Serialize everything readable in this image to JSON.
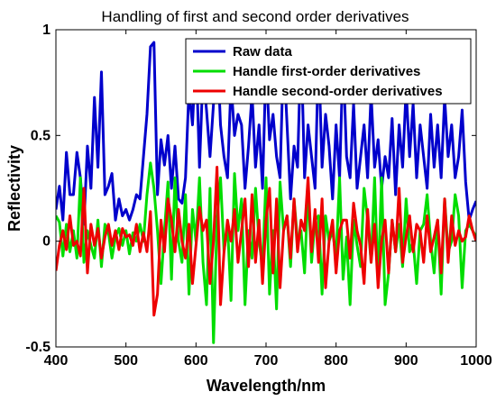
{
  "chart_data": {
    "type": "line",
    "title": "Handling of first and second order derivatives",
    "xlabel": "Wavelength/nm",
    "ylabel": "Reflectivity",
    "xlim": [
      400,
      1000
    ],
    "ylim": [
      -0.5,
      1
    ],
    "xticks": [
      400,
      500,
      600,
      700,
      800,
      900,
      1000
    ],
    "xtick_labels": [
      "400",
      "500",
      "600",
      "700",
      "800",
      "900",
      "1000"
    ],
    "yticks": [
      -0.5,
      0,
      0.5,
      1
    ],
    "ytick_labels": [
      "-0.5",
      "0",
      "0.5",
      "1"
    ],
    "grid": false,
    "legend_position": "top-right",
    "x": [
      400,
      405,
      410,
      415,
      420,
      425,
      430,
      435,
      440,
      445,
      450,
      455,
      460,
      465,
      470,
      475,
      480,
      485,
      490,
      495,
      500,
      505,
      510,
      515,
      520,
      525,
      530,
      535,
      540,
      545,
      550,
      555,
      560,
      565,
      570,
      575,
      580,
      585,
      590,
      595,
      600,
      605,
      610,
      615,
      620,
      625,
      630,
      635,
      640,
      645,
      650,
      655,
      660,
      665,
      670,
      675,
      680,
      685,
      690,
      695,
      700,
      705,
      710,
      715,
      720,
      725,
      730,
      735,
      740,
      745,
      750,
      755,
      760,
      765,
      770,
      775,
      780,
      785,
      790,
      795,
      800,
      805,
      810,
      815,
      820,
      825,
      830,
      835,
      840,
      845,
      850,
      855,
      860,
      865,
      870,
      875,
      880,
      885,
      890,
      895,
      900,
      905,
      910,
      915,
      920,
      925,
      930,
      935,
      940,
      945,
      950,
      955,
      960,
      965,
      970,
      975,
      980,
      985,
      990,
      995,
      1000
    ],
    "series": [
      {
        "name": "Raw data",
        "color": "#0000cc",
        "values": [
          0.15,
          0.26,
          0.1,
          0.42,
          0.22,
          0.22,
          0.42,
          0.3,
          0.08,
          0.45,
          0.25,
          0.68,
          0.35,
          0.8,
          0.22,
          0.26,
          0.32,
          0.1,
          0.2,
          0.12,
          0.15,
          0.1,
          0.15,
          0.22,
          0.2,
          0.4,
          0.6,
          0.92,
          0.94,
          0.22,
          0.48,
          0.36,
          0.5,
          0.25,
          0.45,
          0.2,
          0.18,
          0.3,
          0.72,
          0.55,
          0.9,
          0.35,
          0.8,
          0.62,
          0.4,
          0.65,
          0.95,
          0.55,
          0.4,
          0.3,
          0.75,
          0.5,
          0.6,
          0.55,
          0.25,
          0.45,
          0.7,
          0.35,
          0.55,
          0.25,
          0.85,
          0.48,
          0.6,
          0.4,
          0.3,
          0.9,
          0.55,
          0.2,
          0.45,
          0.35,
          0.95,
          0.3,
          0.55,
          0.4,
          0.25,
          0.9,
          0.35,
          0.6,
          0.45,
          0.2,
          0.55,
          0.3,
          0.88,
          0.4,
          0.3,
          0.65,
          0.25,
          0.4,
          0.55,
          0.3,
          0.7,
          0.35,
          0.48,
          0.25,
          0.4,
          0.3,
          0.58,
          0.22,
          0.55,
          0.35,
          0.72,
          0.4,
          0.65,
          0.3,
          0.55,
          0.4,
          0.25,
          0.6,
          0.35,
          0.55,
          0.3,
          0.68,
          0.4,
          0.55,
          0.3,
          0.4,
          0.62,
          0.28,
          0.1,
          0.15,
          0.19
        ]
      },
      {
        "name": "Handle first-order derivatives",
        "color": "#00dd00",
        "values": [
          0.12,
          0.09,
          -0.07,
          0.08,
          -0.05,
          0.05,
          -0.08,
          0.3,
          -0.1,
          0.05,
          -0.02,
          -0.08,
          0.1,
          -0.12,
          0.08,
          0.04,
          -0.08,
          0.02,
          0.06,
          -0.02,
          0.05,
          -0.06,
          0.04,
          0.0,
          0.08,
          0.0,
          0.22,
          0.37,
          0.25,
          0.05,
          -0.2,
          0.05,
          0.28,
          -0.18,
          0.3,
          0.0,
          -0.1,
          0.22,
          -0.25,
          0.15,
          0.0,
          0.3,
          -0.1,
          -0.3,
          0.25,
          -0.48,
          0.1,
          0.3,
          -0.05,
          0.08,
          -0.28,
          0.32,
          0.05,
          0.2,
          -0.3,
          0.05,
          -0.08,
          0.25,
          0.0,
          -0.12,
          0.3,
          -0.25,
          0.05,
          -0.32,
          0.28,
          0.05,
          0.12,
          -0.12,
          0.2,
          0.0,
          0.05,
          -0.15,
          0.25,
          -0.1,
          0.1,
          0.12,
          -0.25,
          0.12,
          0.0,
          0.05,
          -0.08,
          0.3,
          -0.18,
          0.02,
          -0.3,
          0.1,
          -0.02,
          -0.12,
          0.25,
          0.1,
          -0.1,
          0.3,
          -0.2,
          0.3,
          -0.3,
          -0.15,
          0.1,
          -0.05,
          0.08,
          -0.12,
          0.2,
          -0.05,
          0.0,
          -0.2,
          0.05,
          0.08,
          0.22,
          0.0,
          -0.15,
          0.1,
          -0.25,
          0.2,
          -0.05,
          0.0,
          0.22,
          0.12,
          -0.22,
          0.05,
          0.08,
          0.05,
          0.02
        ]
      },
      {
        "name": "Handle second-order derivatives",
        "color": "#ee0000",
        "values": [
          -0.14,
          -0.02,
          0.05,
          -0.04,
          0.12,
          -0.02,
          0.0,
          -0.07,
          0.25,
          -0.15,
          0.08,
          -0.02,
          0.06,
          -0.08,
          0.02,
          0.08,
          -0.02,
          0.05,
          -0.04,
          0.06,
          0.02,
          0.03,
          -0.02,
          0.08,
          -0.05,
          0.04,
          -0.05,
          0.14,
          -0.35,
          -0.25,
          0.1,
          -0.05,
          0.2,
          0.1,
          -0.05,
          0.15,
          0.0,
          -0.08,
          0.08,
          -0.2,
          -0.02,
          0.16,
          0.05,
          0.1,
          -0.2,
          0.0,
          0.35,
          -0.3,
          -0.05,
          0.1,
          0.0,
          0.15,
          -0.1,
          0.05,
          0.2,
          -0.12,
          0.22,
          -0.1,
          0.1,
          -0.2,
          0.1,
          0.25,
          -0.15,
          0.2,
          -0.22,
          0.05,
          0.12,
          -0.08,
          0.2,
          -0.05,
          0.1,
          0.05,
          0.3,
          -0.05,
          0.15,
          -0.1,
          0.2,
          -0.22,
          0.0,
          0.1,
          -0.15,
          0.05,
          0.1,
          0.1,
          -0.08,
          0.18,
          0.05,
          -0.02,
          -0.2,
          0.15,
          -0.1,
          0.08,
          -0.22,
          0.0,
          0.1,
          -0.15,
          0.1,
          -0.05,
          0.25,
          -0.1,
          0.02,
          0.12,
          -0.05,
          0.08,
          0.05,
          -0.1,
          0.12,
          -0.05,
          0.02,
          0.1,
          -0.15,
          0.2,
          -0.1,
          0.12,
          -0.02,
          0.05,
          0.0,
          0.02,
          0.12,
          0.05,
          0.0
        ]
      }
    ]
  }
}
